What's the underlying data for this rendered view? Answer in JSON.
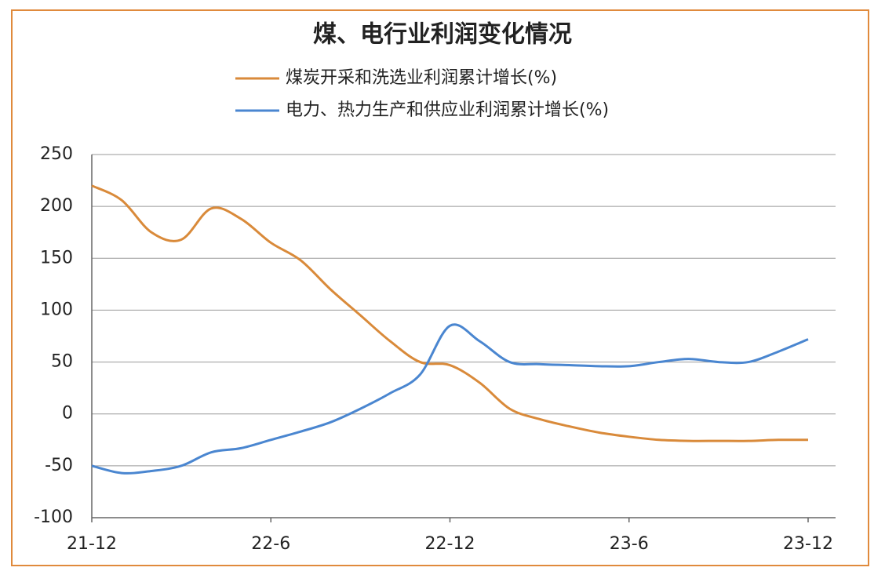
{
  "chart_data": {
    "type": "line",
    "title": "煤、电行业利润变化情况",
    "categories": [
      "21-12",
      null,
      null,
      null,
      null,
      null,
      "22-6",
      null,
      null,
      null,
      null,
      null,
      "22-12",
      null,
      null,
      null,
      null,
      null,
      "23-6",
      null,
      null,
      null,
      null,
      null,
      "23-12"
    ],
    "series": [
      {
        "name": "煤炭开采和洗选业利润累计增长(%)",
        "color": "#d98a3a",
        "values": [
          220,
          206,
          175,
          168,
          198,
          188,
          165,
          148,
          120,
          95,
          70,
          50,
          47,
          30,
          5,
          -5,
          -12,
          -18,
          -22,
          -25,
          -26,
          -26,
          -26,
          -25,
          -25
        ]
      },
      {
        "name": "电力、热力生产和供应业利润累计增长(%)",
        "color": "#4a86d0",
        "values": [
          -50,
          -57,
          -55,
          -50,
          -37,
          -33,
          -25,
          -17,
          -8,
          5,
          20,
          38,
          85,
          70,
          50,
          48,
          47,
          46,
          46,
          50,
          53,
          50,
          50,
          60,
          72
        ]
      }
    ],
    "ylim": [
      -100,
      250
    ],
    "yticks": [
      -100,
      -50,
      0,
      50,
      100,
      150,
      200,
      250
    ],
    "grid": true
  }
}
